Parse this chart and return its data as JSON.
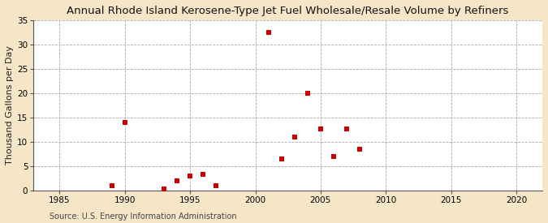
{
  "title": "Annual Rhode Island Kerosene-Type Jet Fuel Wholesale/Resale Volume by Refiners",
  "ylabel": "Thousand Gallons per Day",
  "source": "Source: U.S. Energy Information Administration",
  "background_color": "#f5e6c8",
  "plot_bg_color": "#ffffff",
  "data_points": [
    [
      1989,
      1.0
    ],
    [
      1990,
      14.0
    ],
    [
      1993,
      0.2
    ],
    [
      1994,
      2.0
    ],
    [
      1995,
      3.0
    ],
    [
      1996,
      3.3
    ],
    [
      1997,
      1.0
    ],
    [
      2001,
      32.5
    ],
    [
      2002,
      6.5
    ],
    [
      2003,
      11.0
    ],
    [
      2004,
      20.0
    ],
    [
      2005,
      12.7
    ],
    [
      2006,
      7.0
    ],
    [
      2007,
      12.7
    ],
    [
      2008,
      8.5
    ]
  ],
  "marker_color": "#cc0000",
  "marker_size": 18,
  "xlim": [
    1983,
    2022
  ],
  "ylim": [
    0,
    35
  ],
  "xticks": [
    1985,
    1990,
    1995,
    2000,
    2005,
    2010,
    2015,
    2020
  ],
  "yticks": [
    0,
    5,
    10,
    15,
    20,
    25,
    30,
    35
  ],
  "grid_color": "#aaaaaa",
  "grid_style": "--",
  "title_fontsize": 9.5,
  "label_fontsize": 8,
  "tick_fontsize": 7.5,
  "source_fontsize": 7
}
